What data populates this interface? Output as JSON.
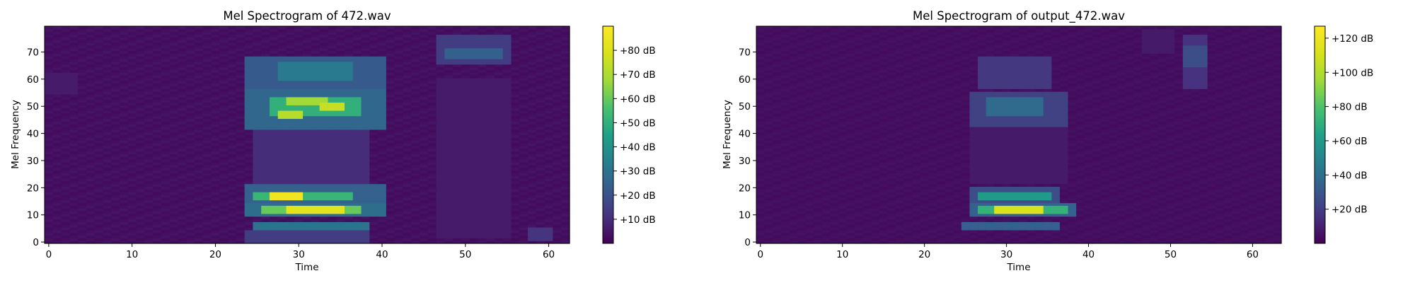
{
  "chart_data": [
    {
      "type": "heatmap",
      "title": "Mel Spectrogram of 472.wav",
      "xlabel": "Time",
      "ylabel": "Mel Frequency",
      "xlim": [
        -0.5,
        62.5
      ],
      "ylim": [
        -0.5,
        79.5
      ],
      "x_ticks": [
        0,
        10,
        20,
        30,
        40,
        50,
        60
      ],
      "y_ticks": [
        0,
        10,
        20,
        30,
        40,
        50,
        60,
        70
      ],
      "colormap": "viridis",
      "colorbar": {
        "vmin": 0,
        "vmax": 90,
        "tick_values": [
          10,
          20,
          30,
          40,
          50,
          60,
          70,
          80
        ],
        "tick_labels": [
          "+10 dB",
          "+20 dB",
          "+30 dB",
          "+40 dB",
          "+50 dB",
          "+60 dB",
          "+70 dB",
          "+80 dB"
        ]
      },
      "background_db": 2,
      "regions": [
        {
          "t": [
            24,
            40
          ],
          "m": [
            57,
            68
          ],
          "db": 22
        },
        {
          "t": [
            28,
            36
          ],
          "m": [
            60,
            66
          ],
          "db": 32
        },
        {
          "t": [
            24,
            40
          ],
          "m": [
            42,
            56
          ],
          "db": 26
        },
        {
          "t": [
            27,
            37
          ],
          "m": [
            47,
            53
          ],
          "db": 50
        },
        {
          "t": [
            29,
            33
          ],
          "m": [
            51,
            53
          ],
          "db": 68
        },
        {
          "t": [
            33,
            35
          ],
          "m": [
            49,
            51
          ],
          "db": 75
        },
        {
          "t": [
            28,
            30
          ],
          "m": [
            46,
            48
          ],
          "db": 72
        },
        {
          "t": [
            25,
            38
          ],
          "m": [
            22,
            42
          ],
          "db": 10
        },
        {
          "t": [
            24,
            40
          ],
          "m": [
            15,
            21
          ],
          "db": 24
        },
        {
          "t": [
            25,
            36
          ],
          "m": [
            16,
            18
          ],
          "db": 52
        },
        {
          "t": [
            27,
            30
          ],
          "m": [
            16,
            18
          ],
          "db": 86
        },
        {
          "t": [
            24,
            40
          ],
          "m": [
            10,
            14
          ],
          "db": 28
        },
        {
          "t": [
            26,
            37
          ],
          "m": [
            11,
            13
          ],
          "db": 60
        },
        {
          "t": [
            29,
            35
          ],
          "m": [
            11,
            13
          ],
          "db": 82
        },
        {
          "t": [
            25,
            38
          ],
          "m": [
            5,
            7
          ],
          "db": 30
        },
        {
          "t": [
            24,
            38
          ],
          "m": [
            0,
            4
          ],
          "db": 14
        },
        {
          "t": [
            47,
            55
          ],
          "m": [
            66,
            76
          ],
          "db": 14
        },
        {
          "t": [
            48,
            54
          ],
          "m": [
            68,
            71
          ],
          "db": 24
        },
        {
          "t": [
            47,
            55
          ],
          "m": [
            2,
            60
          ],
          "db": 6
        },
        {
          "t": [
            58,
            60
          ],
          "m": [
            1,
            5
          ],
          "db": 12
        },
        {
          "t": [
            0,
            3
          ],
          "m": [
            55,
            62
          ],
          "db": 6
        }
      ]
    },
    {
      "type": "heatmap",
      "title": "Mel Spectrogram of output_472.wav",
      "xlabel": "Time",
      "ylabel": "Mel Frequency",
      "xlim": [
        -0.5,
        63.5
      ],
      "ylim": [
        -0.5,
        79.5
      ],
      "x_ticks": [
        0,
        10,
        20,
        30,
        40,
        50,
        60
      ],
      "y_ticks": [
        0,
        10,
        20,
        30,
        40,
        50,
        60,
        70
      ],
      "colormap": "viridis",
      "colorbar": {
        "vmin": 0,
        "vmax": 127,
        "tick_values": [
          20,
          40,
          60,
          80,
          100,
          120
        ],
        "tick_labels": [
          "+20 dB",
          "+40 dB",
          "+60 dB",
          "+80 dB",
          "+100 dB",
          "+120 dB"
        ]
      },
      "background_db": 3,
      "regions": [
        {
          "t": [
            27,
            35
          ],
          "m": [
            57,
            68
          ],
          "db": 18
        },
        {
          "t": [
            26,
            37
          ],
          "m": [
            43,
            55
          ],
          "db": 22
        },
        {
          "t": [
            28,
            34
          ],
          "m": [
            47,
            53
          ],
          "db": 38
        },
        {
          "t": [
            26,
            37
          ],
          "m": [
            22,
            42
          ],
          "db": 8
        },
        {
          "t": [
            26,
            36
          ],
          "m": [
            15,
            20
          ],
          "db": 26
        },
        {
          "t": [
            27,
            35
          ],
          "m": [
            16,
            18
          ],
          "db": 60
        },
        {
          "t": [
            26,
            38
          ],
          "m": [
            10,
            14
          ],
          "db": 34
        },
        {
          "t": [
            27,
            37
          ],
          "m": [
            11,
            13
          ],
          "db": 72
        },
        {
          "t": [
            29,
            34
          ],
          "m": [
            11,
            13
          ],
          "db": 112
        },
        {
          "t": [
            25,
            36
          ],
          "m": [
            5,
            7
          ],
          "db": 34
        },
        {
          "t": [
            52,
            54
          ],
          "m": [
            57,
            76
          ],
          "db": 16
        },
        {
          "t": [
            52,
            54
          ],
          "m": [
            65,
            72
          ],
          "db": 26
        },
        {
          "t": [
            47,
            50
          ],
          "m": [
            70,
            78
          ],
          "db": 8
        }
      ]
    }
  ]
}
